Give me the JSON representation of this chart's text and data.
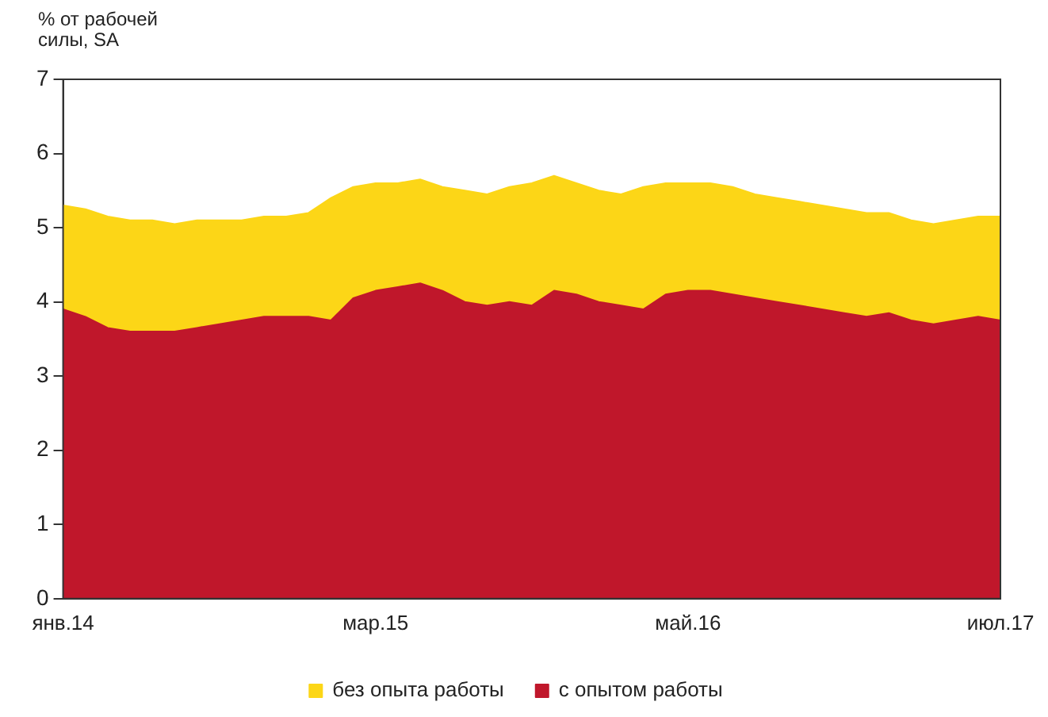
{
  "chart_data": {
    "type": "area",
    "stacked": true,
    "ylabel": "% от рабочей силы, SA",
    "categories": [
      "янв.14",
      null,
      null,
      null,
      null,
      null,
      null,
      null,
      null,
      null,
      null,
      null,
      null,
      null,
      "мар.15",
      null,
      null,
      null,
      null,
      null,
      null,
      null,
      null,
      null,
      null,
      null,
      null,
      null,
      "май.16",
      null,
      null,
      null,
      null,
      null,
      null,
      null,
      null,
      null,
      null,
      null,
      null,
      null,
      "июл.17"
    ],
    "series": [
      {
        "name": "с опытом работы",
        "color": "#c0172b",
        "values": [
          3.9,
          3.8,
          3.65,
          3.6,
          3.6,
          3.6,
          3.65,
          3.7,
          3.75,
          3.8,
          3.8,
          3.8,
          3.75,
          4.05,
          4.15,
          4.2,
          4.25,
          4.15,
          4.0,
          3.95,
          4.0,
          3.95,
          4.15,
          4.1,
          4.0,
          3.95,
          3.9,
          4.1,
          4.15,
          4.15,
          4.1,
          4.05,
          4.0,
          3.95,
          3.9,
          3.85,
          3.8,
          3.85,
          3.75,
          3.7,
          3.75,
          3.8,
          3.75
        ]
      },
      {
        "name": "без опыта работы",
        "color": "#fcd617",
        "values": [
          1.4,
          1.45,
          1.5,
          1.5,
          1.5,
          1.45,
          1.45,
          1.4,
          1.35,
          1.35,
          1.35,
          1.4,
          1.65,
          1.5,
          1.45,
          1.4,
          1.4,
          1.4,
          1.5,
          1.5,
          1.55,
          1.65,
          1.55,
          1.5,
          1.5,
          1.5,
          1.65,
          1.5,
          1.45,
          1.45,
          1.45,
          1.4,
          1.4,
          1.4,
          1.4,
          1.4,
          1.4,
          1.35,
          1.35,
          1.35,
          1.35,
          1.35,
          1.4
        ]
      }
    ],
    "ylim": [
      0,
      7
    ],
    "yticks": [
      0,
      1,
      2,
      3,
      4,
      5,
      6,
      7
    ],
    "grid": false,
    "legend": "bottom"
  }
}
